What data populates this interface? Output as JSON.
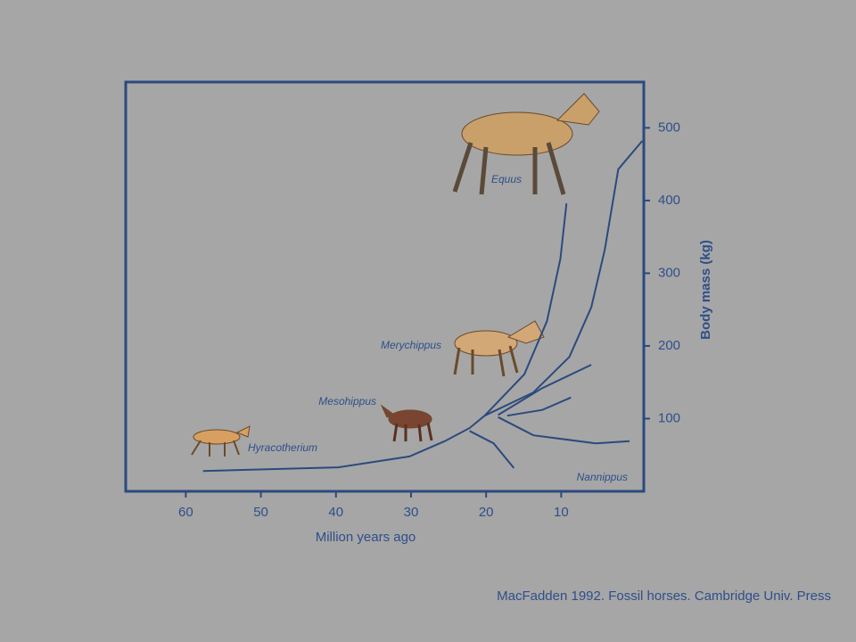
{
  "chart_data": {
    "type": "line",
    "xlabel": "Million years ago",
    "ylabel": "Body mass (kg)",
    "source": "MacFadden 1992. Fossil horses. Cambridge Univ. Press",
    "xlim": [
      68,
      -1
    ],
    "xticks": [
      60,
      50,
      40,
      30,
      20,
      10
    ],
    "ylim": [
      0,
      563
    ],
    "yticks": [
      100,
      200,
      300,
      400,
      500
    ],
    "color": "#2b4a7e",
    "annotations": [
      "Equus",
      "Merychippus",
      "Mesohippus",
      "Hyracotherium",
      "Nannippus"
    ],
    "series": [
      {
        "x": [
          57.7,
          39.7,
          30.2,
          25.5,
          22.2,
          20.2
        ],
        "values": [
          28,
          33,
          48,
          69,
          87,
          104
        ]
      },
      {
        "x": [
          20.2,
          14.9,
          11.9,
          10.1,
          9.3
        ],
        "values": [
          104,
          161,
          234,
          320,
          396
        ]
      },
      {
        "x": [
          20.2,
          13.7,
          8.9,
          6.0,
          4.2,
          2.4,
          -0.8
        ],
        "values": [
          104,
          136,
          185,
          253,
          332,
          443,
          482
        ]
      },
      {
        "x": [
          18.4,
          12.5,
          6.0
        ],
        "values": [
          105,
          142,
          174
        ]
      },
      {
        "x": [
          17.2,
          12.5,
          8.7
        ],
        "values": [
          104,
          112,
          129
        ]
      },
      {
        "x": [
          18.4,
          13.7,
          5.4,
          0.9
        ],
        "values": [
          102,
          77,
          66,
          69
        ]
      },
      {
        "x": [
          22.2,
          19.0,
          16.3
        ],
        "values": [
          83,
          66,
          32
        ]
      }
    ]
  }
}
